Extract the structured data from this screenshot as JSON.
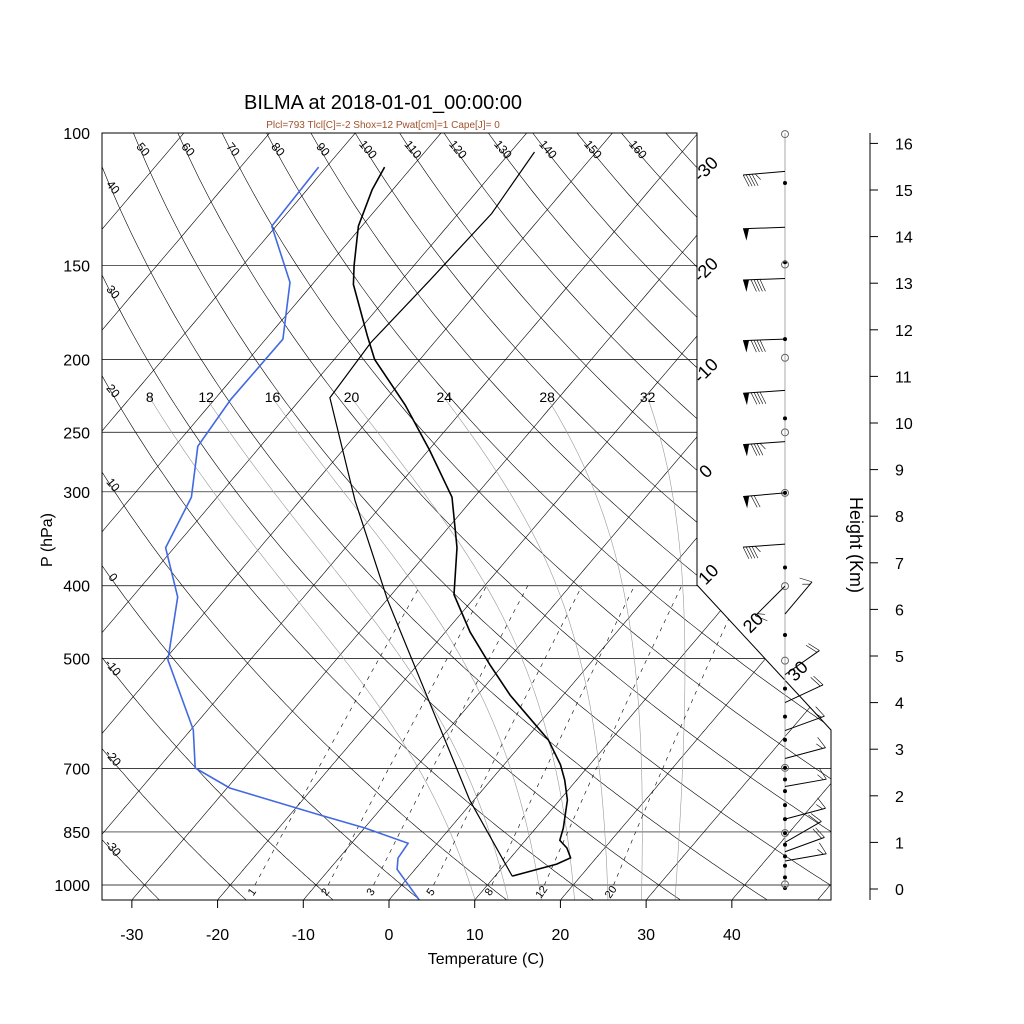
{
  "title": "BILMA at 2018-01-01_00:00:00",
  "subtitle": "Plcl=793 Tlcl[C]=-2 Shox=12 Pwat[cm]=1 Cape[J]= 0",
  "colors": {
    "temperature": "#000000",
    "dewpoint": "#4169E1",
    "parcel": "#000000",
    "subtitle": "#A0522D",
    "grid": "#000000",
    "moist": "#999999"
  },
  "chart_data": {
    "type": "line",
    "title": "BILMA at 2018-01-01_00:00:00",
    "subtitle": "Plcl=793 Tlcl[C]=-2 Shox=12 Pwat[cm]=1 Cape[J]= 0",
    "xlabel": "Temperature (C)",
    "ylabel": "P (hPa)",
    "y2label": "Height (Km)",
    "xticks": [
      -30,
      -20,
      -10,
      0,
      10,
      20,
      30,
      40
    ],
    "pressure_levels": [
      100,
      150,
      200,
      250,
      300,
      400,
      500,
      700,
      850,
      1000
    ],
    "height_ticks": [
      0,
      1,
      2,
      3,
      4,
      5,
      6,
      7,
      8,
      9,
      10,
      11,
      12,
      13,
      14,
      15,
      16
    ],
    "ylim": [
      1050,
      100
    ],
    "isotherm_labels": [
      -30,
      -20,
      -10,
      0,
      10,
      20,
      30
    ],
    "dry_adiabat_labels_top": [
      50,
      60,
      70,
      80,
      90,
      100,
      110,
      120,
      130,
      140,
      150,
      160
    ],
    "dry_adiabat_labels_left": [
      40,
      30,
      20,
      10,
      0,
      -10,
      -20,
      -30
    ],
    "moist_adiabat_labels": [
      8,
      12,
      16,
      20,
      24,
      28,
      32
    ],
    "mixing_ratio_labels": [
      1,
      2,
      3,
      5,
      8,
      12,
      20
    ],
    "series": [
      {
        "name": "Temperature",
        "p": [
          973,
          938,
          920,
          893,
          872,
          840,
          771,
          725,
          692,
          641,
          600,
          559,
          510,
          461,
          411,
          356,
          305,
          264,
          230,
          200,
          186,
          159,
          150,
          133,
          119,
          111
        ],
        "t": [
          12.0,
          16.0,
          17.0,
          15.6,
          14.0,
          13.2,
          10.9,
          8.6,
          6.6,
          2.7,
          -1.6,
          -6.2,
          -11.5,
          -17.1,
          -22.7,
          -27.0,
          -32.6,
          -39.9,
          -47.2,
          -55.3,
          -58.5,
          -65.2,
          -67.0,
          -70.4,
          -72.4,
          -73.2
        ]
      },
      {
        "name": "Dewpoint",
        "p": [
          1050,
          953,
          921,
          880,
          840,
          807,
          743,
          699,
          622,
          502,
          414,
          356,
          305,
          261,
          226,
          188,
          158,
          133,
          111
        ],
        "t": [
          3.7,
          -2.1,
          -3.1,
          -3.4,
          -9.9,
          -16.5,
          -29.7,
          -35.7,
          -39.7,
          -49.6,
          -54.7,
          -61.0,
          -63.0,
          -67.3,
          -68.1,
          -68.0,
          -72.8,
          -80.5,
          -80.9
        ]
      },
      {
        "name": "Parcel",
        "p": [
          973,
          771,
          569,
          418,
          308,
          225,
          190,
          157,
          128,
          106
        ],
        "t": [
          12.0,
          -0.5,
          -15.1,
          -29.9,
          -43.6,
          -56.7,
          -57.4,
          -56.7,
          -56.1,
          -57.2
        ]
      }
    ],
    "wind_barbs": [
      {
        "km": 15.4,
        "speed_kt": 45,
        "dir_deg": 265
      },
      {
        "km": 14.2,
        "speed_kt": 50,
        "dir_deg": 268
      },
      {
        "km": 13.1,
        "speed_kt": 90,
        "dir_deg": 268
      },
      {
        "km": 11.8,
        "speed_kt": 90,
        "dir_deg": 268
      },
      {
        "km": 10.7,
        "speed_kt": 90,
        "dir_deg": 266
      },
      {
        "km": 9.6,
        "speed_kt": 85,
        "dir_deg": 266
      },
      {
        "km": 8.5,
        "speed_kt": 70,
        "dir_deg": 265
      },
      {
        "km": 7.4,
        "speed_kt": 45,
        "dir_deg": 266
      },
      {
        "km": 6.5,
        "speed_kt": 15,
        "dir_deg": 225
      },
      {
        "km": 5.9,
        "speed_kt": 15,
        "dir_deg": 40
      },
      {
        "km": 4.6,
        "speed_kt": 20,
        "dir_deg": 55
      },
      {
        "km": 4.0,
        "speed_kt": 20,
        "dir_deg": 65
      },
      {
        "km": 3.4,
        "speed_kt": 15,
        "dir_deg": 70
      },
      {
        "km": 2.8,
        "speed_kt": 15,
        "dir_deg": 75
      },
      {
        "km": 2.2,
        "speed_kt": 15,
        "dir_deg": 80
      },
      {
        "km": 1.5,
        "speed_kt": 15,
        "dir_deg": 75
      },
      {
        "km": 1.0,
        "speed_kt": 20,
        "dir_deg": 60
      },
      {
        "km": 0.8,
        "speed_kt": 20,
        "dir_deg": 70
      },
      {
        "km": 0.6,
        "speed_kt": 15,
        "dir_deg": 80
      }
    ],
    "staff_dots_km": [
      15.15,
      13.45,
      11.8,
      10.1,
      8.5,
      6.9,
      5.45,
      4.3,
      3.7,
      3.2,
      2.6,
      2.35,
      2.1,
      1.8,
      1.5,
      1.2,
      0.95,
      0.7,
      0.5,
      0.25,
      0.02
    ],
    "staff_circles_km": [
      16.2,
      13.4,
      11.4,
      9.8,
      8.5,
      6.5,
      4.9,
      2.6,
      1.2,
      0.1
    ]
  }
}
